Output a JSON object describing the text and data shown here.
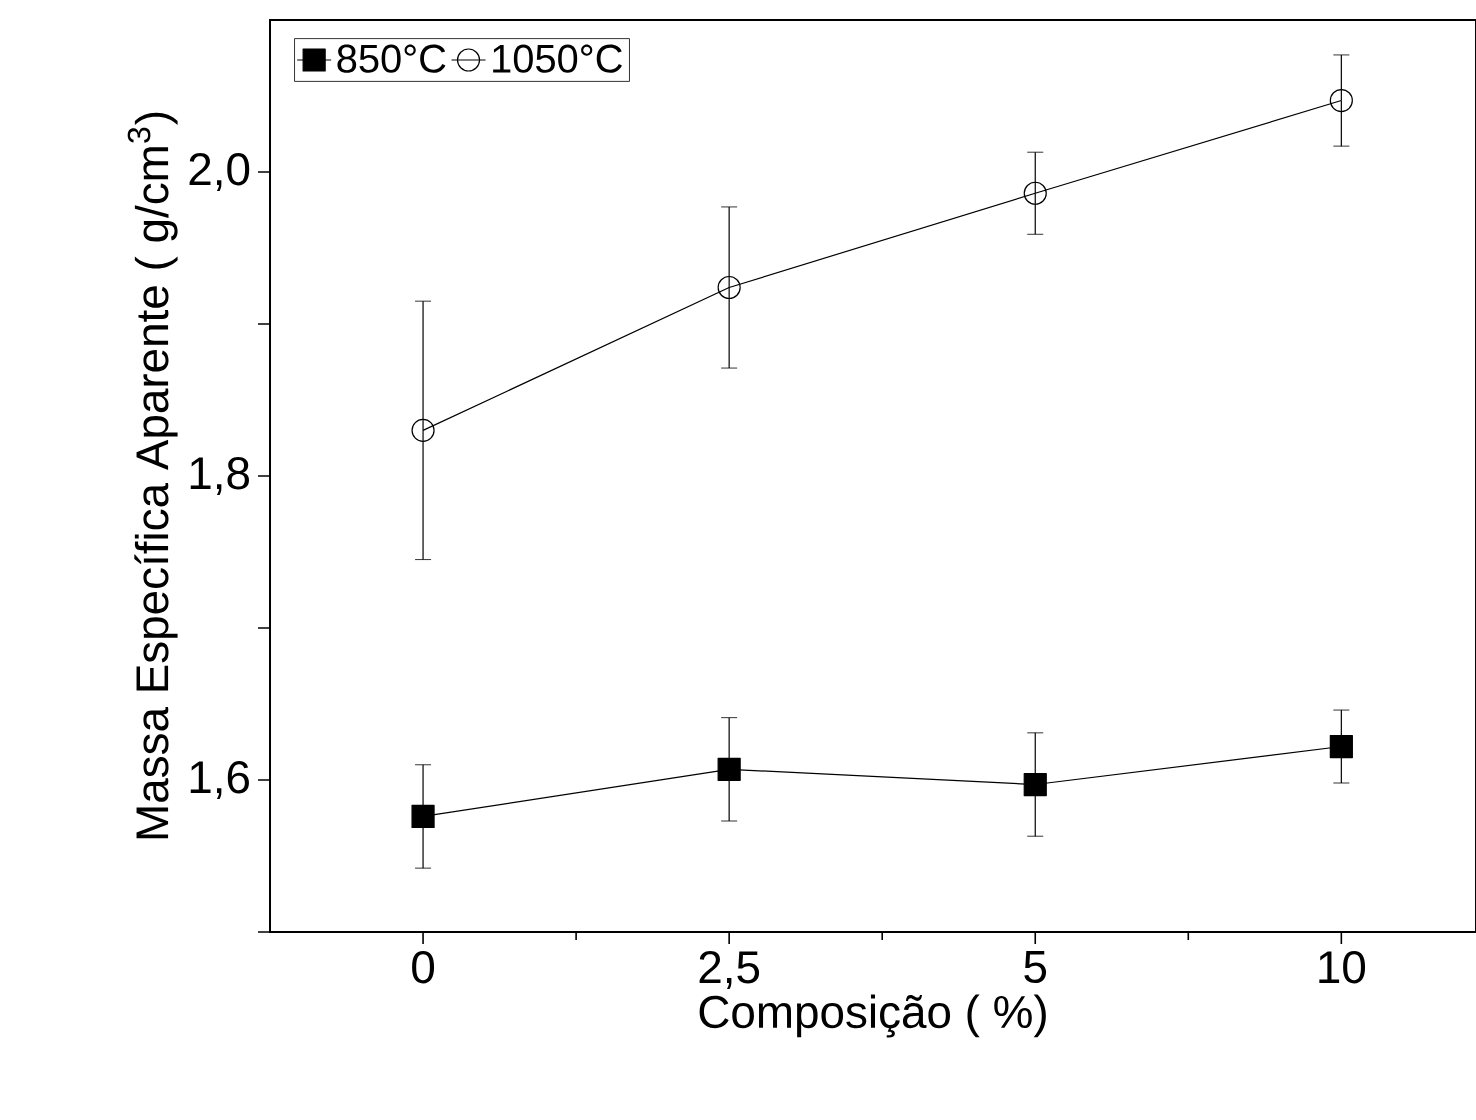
{
  "chart_data": {
    "type": "line",
    "xlabel": "Composição (   %)",
    "ylabel": "Massa Específica Aparente (  g/cm$^{3}$)",
    "categories": [
      "0",
      "2,5",
      "5",
      "10"
    ],
    "ylim": [
      1.5,
      2.1
    ],
    "yticks": [
      {
        "value": 1.5,
        "label": null
      },
      {
        "value": 1.6,
        "label": "1,6"
      },
      {
        "value": 1.7,
        "label": null
      },
      {
        "value": 1.8,
        "label": "1,8"
      },
      {
        "value": 1.9,
        "label": null
      },
      {
        "value": 2.0,
        "label": "2,0"
      }
    ],
    "legend": "top left",
    "grid": false,
    "line_style": "solid",
    "series": [
      {
        "name": "850°C",
        "color": "#000000",
        "marker": "square",
        "values": [
          1.576,
          1.607,
          1.597,
          1.622
        ],
        "errors": [
          0.034,
          0.034,
          0.034,
          0.024
        ]
      },
      {
        "name": "1050°C",
        "color": "#000000",
        "marker": "circle",
        "values": [
          1.83,
          1.924,
          1.986,
          2.047
        ],
        "errors": [
          0.085,
          0.053,
          0.027,
          0.03
        ]
      }
    ]
  }
}
